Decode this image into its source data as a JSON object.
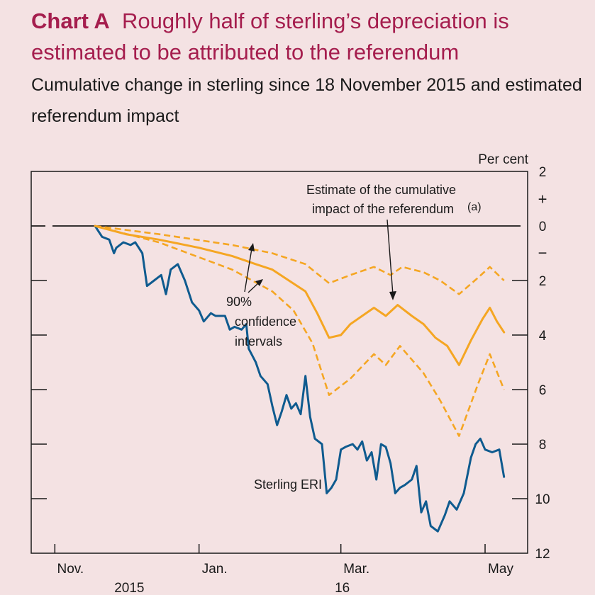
{
  "chart_label": "Chart A",
  "chart_title": "Roughly half of sterling’s depreciation is estimated to be attributed to the referendum",
  "chart_subtitle": "Cumulative change in sterling since 18 November 2015 and estimated referendum impact",
  "chart_data": {
    "type": "line",
    "unit_label": "Per cent",
    "y_axis": {
      "ticks": [
        2,
        0,
        -2,
        -4,
        -6,
        -8,
        -10,
        -12
      ],
      "tick_labels": [
        "2",
        "0",
        "2",
        "4",
        "6",
        "8",
        "10",
        "12"
      ],
      "sign_markers": [
        "+",
        "−"
      ],
      "ylim": [
        -12,
        2
      ]
    },
    "x_axis": {
      "ticks": [
        {
          "date": "2015-11-01",
          "label": "Nov.",
          "year": "2015"
        },
        {
          "date": "2016-01-01",
          "label": "Jan.",
          "year": ""
        },
        {
          "date": "2016-03-01",
          "label": "Mar.",
          "year": "16"
        },
        {
          "date": "2016-05-01",
          "label": "May",
          "year": ""
        }
      ],
      "xlim": [
        "2015-10-22",
        "2016-05-19"
      ]
    },
    "annotations": [
      {
        "text_lines": [
          "Estimate of the cumulative",
          "impact of the referendum"
        ],
        "superscript": "(a)",
        "points_to": "Estimate of the cumulative impact of the referendum"
      },
      {
        "text_lines": [
          "90%",
          "confidence",
          "intervals"
        ],
        "points_to": "confidence bands"
      },
      {
        "text_lines": [
          "Sterling ERI"
        ],
        "points_to": "Sterling ERI"
      }
    ],
    "series": [
      {
        "name": "Sterling ERI",
        "color": "#0f5b8f",
        "style": "solid",
        "points": [
          [
            "2015-11-18",
            0.0
          ],
          [
            "2015-11-21",
            -0.4
          ],
          [
            "2015-11-24",
            -0.5
          ],
          [
            "2015-11-26",
            -1.0
          ],
          [
            "2015-11-27",
            -0.8
          ],
          [
            "2015-11-30",
            -0.6
          ],
          [
            "2015-12-03",
            -0.7
          ],
          [
            "2015-12-05",
            -0.6
          ],
          [
            "2015-12-08",
            -1.0
          ],
          [
            "2015-12-10",
            -2.2
          ],
          [
            "2015-12-13",
            -2.0
          ],
          [
            "2015-12-16",
            -1.8
          ],
          [
            "2015-12-18",
            -2.5
          ],
          [
            "2015-12-20",
            -1.6
          ],
          [
            "2015-12-23",
            -1.4
          ],
          [
            "2015-12-26",
            -2.0
          ],
          [
            "2015-12-29",
            -2.8
          ],
          [
            "2016-01-01",
            -3.1
          ],
          [
            "2016-01-03",
            -3.5
          ],
          [
            "2016-01-06",
            -3.2
          ],
          [
            "2016-01-08",
            -3.3
          ],
          [
            "2016-01-12",
            -3.3
          ],
          [
            "2016-01-14",
            -3.8
          ],
          [
            "2016-01-16",
            -3.7
          ],
          [
            "2016-01-19",
            -3.8
          ],
          [
            "2016-01-21",
            -3.6
          ],
          [
            "2016-01-22",
            -4.5
          ],
          [
            "2016-01-25",
            -5.0
          ],
          [
            "2016-01-27",
            -5.5
          ],
          [
            "2016-01-30",
            -5.8
          ],
          [
            "2016-02-01",
            -6.6
          ],
          [
            "2016-02-03",
            -7.3
          ],
          [
            "2016-02-05",
            -6.8
          ],
          [
            "2016-02-07",
            -6.2
          ],
          [
            "2016-02-09",
            -6.7
          ],
          [
            "2016-02-11",
            -6.5
          ],
          [
            "2016-02-13",
            -6.9
          ],
          [
            "2016-02-15",
            -5.5
          ],
          [
            "2016-02-17",
            -7.0
          ],
          [
            "2016-02-19",
            -7.8
          ],
          [
            "2016-02-22",
            -8.0
          ],
          [
            "2016-02-24",
            -9.8
          ],
          [
            "2016-02-26",
            -9.6
          ],
          [
            "2016-02-28",
            -9.3
          ],
          [
            "2016-03-01",
            -8.2
          ],
          [
            "2016-03-03",
            -8.1
          ],
          [
            "2016-03-06",
            -8.0
          ],
          [
            "2016-03-08",
            -8.2
          ],
          [
            "2016-03-10",
            -7.9
          ],
          [
            "2016-03-12",
            -8.6
          ],
          [
            "2016-03-14",
            -8.3
          ],
          [
            "2016-03-16",
            -9.3
          ],
          [
            "2016-03-18",
            -8.0
          ],
          [
            "2016-03-20",
            -8.1
          ],
          [
            "2016-03-22",
            -8.7
          ],
          [
            "2016-03-24",
            -9.8
          ],
          [
            "2016-03-26",
            -9.6
          ],
          [
            "2016-03-28",
            -9.5
          ],
          [
            "2016-03-31",
            -9.3
          ],
          [
            "2016-04-02",
            -8.8
          ],
          [
            "2016-04-04",
            -10.5
          ],
          [
            "2016-04-06",
            -10.1
          ],
          [
            "2016-04-08",
            -11.0
          ],
          [
            "2016-04-11",
            -11.2
          ],
          [
            "2016-04-14",
            -10.6
          ],
          [
            "2016-04-16",
            -10.1
          ],
          [
            "2016-04-19",
            -10.4
          ],
          [
            "2016-04-22",
            -9.8
          ],
          [
            "2016-04-25",
            -8.5
          ],
          [
            "2016-04-27",
            -8.0
          ],
          [
            "2016-04-29",
            -7.8
          ],
          [
            "2016-05-01",
            -8.2
          ],
          [
            "2016-05-04",
            -8.3
          ],
          [
            "2016-05-07",
            -8.2
          ],
          [
            "2016-05-09",
            -9.2
          ]
        ]
      },
      {
        "name": "Estimate of the cumulative impact of the referendum",
        "color": "#f5a623",
        "style": "solid",
        "points": [
          [
            "2015-11-18",
            0.0
          ],
          [
            "2015-12-01",
            -0.3
          ],
          [
            "2015-12-15",
            -0.5
          ],
          [
            "2016-01-01",
            -0.8
          ],
          [
            "2016-01-15",
            -1.1
          ],
          [
            "2016-01-25",
            -1.4
          ],
          [
            "2016-02-01",
            -1.6
          ],
          [
            "2016-02-08",
            -2.0
          ],
          [
            "2016-02-15",
            -2.4
          ],
          [
            "2016-02-20",
            -3.2
          ],
          [
            "2016-02-25",
            -4.1
          ],
          [
            "2016-03-01",
            -4.0
          ],
          [
            "2016-03-05",
            -3.6
          ],
          [
            "2016-03-10",
            -3.3
          ],
          [
            "2016-03-15",
            -3.0
          ],
          [
            "2016-03-20",
            -3.3
          ],
          [
            "2016-03-25",
            -2.9
          ],
          [
            "2016-03-31",
            -3.3
          ],
          [
            "2016-04-05",
            -3.6
          ],
          [
            "2016-04-10",
            -4.1
          ],
          [
            "2016-04-15",
            -4.4
          ],
          [
            "2016-04-20",
            -5.1
          ],
          [
            "2016-04-25",
            -4.2
          ],
          [
            "2016-04-30",
            -3.4
          ],
          [
            "2016-05-03",
            -3.0
          ],
          [
            "2016-05-06",
            -3.5
          ],
          [
            "2016-05-09",
            -3.9
          ]
        ]
      },
      {
        "name": "90% confidence interval (upper)",
        "color": "#f5a623",
        "style": "dashed",
        "points": [
          [
            "2015-11-18",
            0.0
          ],
          [
            "2015-12-15",
            -0.3
          ],
          [
            "2016-01-15",
            -0.7
          ],
          [
            "2016-02-01",
            -1.0
          ],
          [
            "2016-02-15",
            -1.4
          ],
          [
            "2016-02-25",
            -2.1
          ],
          [
            "2016-03-05",
            -1.8
          ],
          [
            "2016-03-15",
            -1.5
          ],
          [
            "2016-03-22",
            -1.8
          ],
          [
            "2016-03-27",
            -1.5
          ],
          [
            "2016-04-05",
            -1.7
          ],
          [
            "2016-04-12",
            -2.0
          ],
          [
            "2016-04-20",
            -2.5
          ],
          [
            "2016-04-28",
            -1.9
          ],
          [
            "2016-05-03",
            -1.5
          ],
          [
            "2016-05-09",
            -2.0
          ]
        ]
      },
      {
        "name": "90% confidence interval (lower)",
        "color": "#f5a623",
        "style": "dashed",
        "points": [
          [
            "2015-11-18",
            0.0
          ],
          [
            "2015-12-15",
            -0.6
          ],
          [
            "2016-01-15",
            -1.6
          ],
          [
            "2016-02-01",
            -2.4
          ],
          [
            "2016-02-10",
            -3.1
          ],
          [
            "2016-02-18",
            -4.3
          ],
          [
            "2016-02-25",
            -6.2
          ],
          [
            "2016-03-05",
            -5.6
          ],
          [
            "2016-03-15",
            -4.7
          ],
          [
            "2016-03-20",
            -5.1
          ],
          [
            "2016-03-26",
            -4.4
          ],
          [
            "2016-04-05",
            -5.4
          ],
          [
            "2016-04-12",
            -6.4
          ],
          [
            "2016-04-20",
            -7.7
          ],
          [
            "2016-04-28",
            -5.8
          ],
          [
            "2016-05-03",
            -4.7
          ],
          [
            "2016-05-09",
            -6.0
          ]
        ]
      }
    ]
  }
}
